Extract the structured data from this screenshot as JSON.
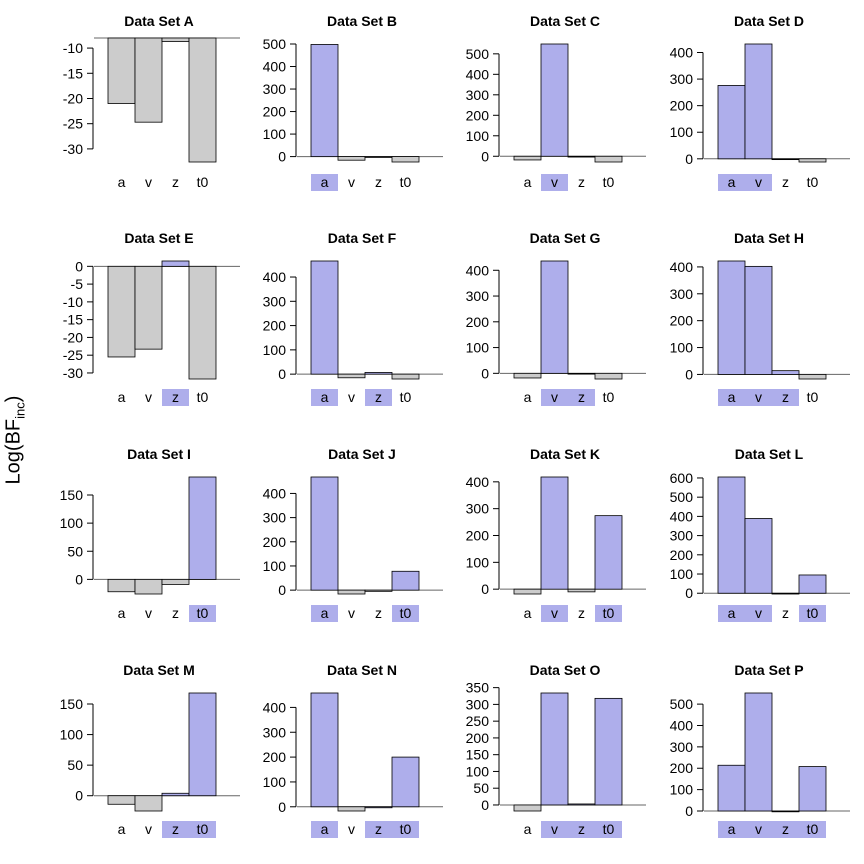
{
  "figure": {
    "ylabel": "Log(BF",
    "ylabel_sub": "inc",
    "ylabel_close": ")"
  },
  "colors": {
    "significant_fill": "#aeaeeb",
    "nonsignificant_fill": "#cccccc",
    "stroke": "#000000"
  },
  "chart_data": [
    {
      "type": "bar",
      "title": "Data Set A",
      "categories": [
        "a",
        "v",
        "z",
        "t0"
      ],
      "values": [
        -21,
        -24.7,
        -8.7,
        -32.6
      ],
      "highlighted": [
        false,
        false,
        false,
        false
      ],
      "ylim": [
        -32.6,
        -8
      ],
      "yticks": [
        -10,
        -15,
        -20,
        -25,
        -30
      ]
    },
    {
      "type": "bar",
      "title": "Data Set B",
      "categories": [
        "a",
        "v",
        "z",
        "t0"
      ],
      "values": [
        498,
        -16,
        -4,
        -24
      ],
      "highlighted": [
        true,
        false,
        false,
        false
      ],
      "ylim": [
        -24,
        500
      ],
      "yticks": [
        0,
        100,
        200,
        300,
        400,
        500
      ]
    },
    {
      "type": "bar",
      "title": "Data Set C",
      "categories": [
        "a",
        "v",
        "z",
        "t0"
      ],
      "values": [
        -18,
        548,
        -3,
        -28
      ],
      "highlighted": [
        false,
        true,
        false,
        false
      ],
      "ylim": [
        -28,
        548
      ],
      "yticks": [
        0,
        100,
        200,
        300,
        400,
        500
      ]
    },
    {
      "type": "bar",
      "title": "Data Set D",
      "categories": [
        "a",
        "v",
        "z",
        "t0"
      ],
      "values": [
        276,
        432,
        -3,
        -12
      ],
      "highlighted": [
        true,
        true,
        false,
        false
      ],
      "ylim": [
        -12,
        432
      ],
      "yticks": [
        0,
        100,
        200,
        300,
        400
      ]
    },
    {
      "type": "bar",
      "title": "Data Set E",
      "categories": [
        "a",
        "v",
        "z",
        "t0"
      ],
      "values": [
        -25.5,
        -23.3,
        1.5,
        -31.7
      ],
      "highlighted": [
        false,
        false,
        true,
        false
      ],
      "ylim": [
        -31.7,
        1.5
      ],
      "yticks": [
        0,
        -5,
        -10,
        -15,
        -20,
        -25,
        -30
      ]
    },
    {
      "type": "bar",
      "title": "Data Set F",
      "categories": [
        "a",
        "v",
        "z",
        "t0"
      ],
      "values": [
        466,
        -15,
        7,
        -20
      ],
      "highlighted": [
        true,
        false,
        true,
        false
      ],
      "ylim": [
        -20,
        466
      ],
      "yticks": [
        0,
        100,
        200,
        300,
        400
      ]
    },
    {
      "type": "bar",
      "title": "Data Set G",
      "categories": [
        "a",
        "v",
        "z",
        "t0"
      ],
      "values": [
        -18,
        436,
        -2,
        -22
      ],
      "highlighted": [
        false,
        true,
        true,
        false
      ],
      "ylim": [
        -22,
        436
      ],
      "yticks": [
        0,
        100,
        200,
        300,
        400
      ]
    },
    {
      "type": "bar",
      "title": "Data Set H",
      "categories": [
        "a",
        "v",
        "z",
        "t0"
      ],
      "values": [
        422,
        402,
        14,
        -17
      ],
      "highlighted": [
        true,
        true,
        true,
        false
      ],
      "ylim": [
        -17,
        422
      ],
      "yticks": [
        0,
        100,
        200,
        300,
        400
      ]
    },
    {
      "type": "bar",
      "title": "Data Set I",
      "categories": [
        "a",
        "v",
        "z",
        "t0"
      ],
      "values": [
        -22,
        -26,
        -9,
        182
      ],
      "highlighted": [
        false,
        false,
        false,
        true
      ],
      "ylim": [
        -26,
        182
      ],
      "yticks": [
        0,
        50,
        100,
        150
      ]
    },
    {
      "type": "bar",
      "title": "Data Set J",
      "categories": [
        "a",
        "v",
        "z",
        "t0"
      ],
      "values": [
        468,
        -16,
        -5,
        78
      ],
      "highlighted": [
        true,
        false,
        false,
        true
      ],
      "ylim": [
        -16,
        468
      ],
      "yticks": [
        0,
        100,
        200,
        300,
        400
      ]
    },
    {
      "type": "bar",
      "title": "Data Set K",
      "categories": [
        "a",
        "v",
        "z",
        "t0"
      ],
      "values": [
        -18,
        418,
        -10,
        274
      ],
      "highlighted": [
        false,
        true,
        false,
        true
      ],
      "ylim": [
        -18,
        418
      ],
      "yticks": [
        0,
        100,
        200,
        300,
        400
      ]
    },
    {
      "type": "bar",
      "title": "Data Set L",
      "categories": [
        "a",
        "v",
        "z",
        "t0"
      ],
      "values": [
        605,
        389,
        -4,
        95
      ],
      "highlighted": [
        true,
        true,
        false,
        true
      ],
      "ylim": [
        -4,
        605
      ],
      "yticks": [
        0,
        100,
        200,
        300,
        400,
        500,
        600
      ]
    },
    {
      "type": "bar",
      "title": "Data Set M",
      "categories": [
        "a",
        "v",
        "z",
        "t0"
      ],
      "values": [
        -14,
        -25,
        4,
        168
      ],
      "highlighted": [
        false,
        false,
        true,
        true
      ],
      "ylim": [
        -25,
        168
      ],
      "yticks": [
        0,
        50,
        100,
        150
      ]
    },
    {
      "type": "bar",
      "title": "Data Set N",
      "categories": [
        "a",
        "v",
        "z",
        "t0"
      ],
      "values": [
        458,
        -17,
        -4,
        200
      ],
      "highlighted": [
        true,
        false,
        true,
        true
      ],
      "ylim": [
        -17,
        458
      ],
      "yticks": [
        0,
        100,
        200,
        300,
        400
      ]
    },
    {
      "type": "bar",
      "title": "Data Set O",
      "categories": [
        "a",
        "v",
        "z",
        "t0"
      ],
      "values": [
        -18,
        334,
        3,
        318
      ],
      "highlighted": [
        false,
        true,
        true,
        true
      ],
      "ylim": [
        -18,
        334
      ],
      "yticks": [
        0,
        50,
        100,
        150,
        200,
        250,
        300,
        350
      ]
    },
    {
      "type": "bar",
      "title": "Data Set P",
      "categories": [
        "a",
        "v",
        "z",
        "t0"
      ],
      "values": [
        214,
        552,
        0,
        208
      ],
      "highlighted": [
        true,
        true,
        true,
        true
      ],
      "ylim": [
        0,
        552
      ],
      "yticks": [
        0,
        100,
        200,
        300,
        400,
        500
      ]
    }
  ]
}
